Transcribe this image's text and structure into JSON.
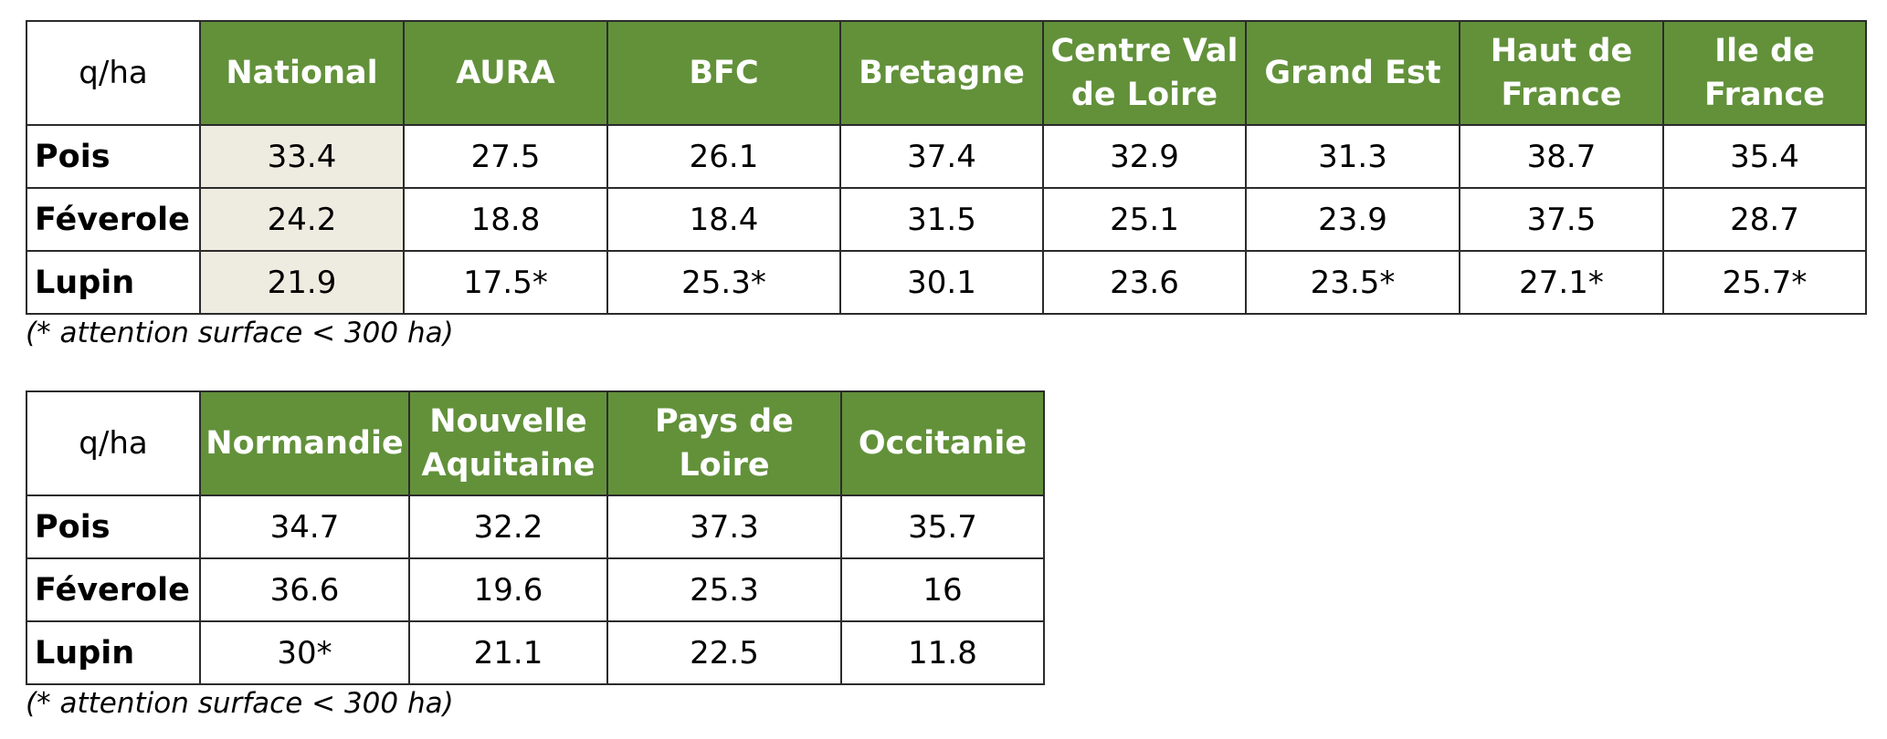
{
  "table1": {
    "unit_label": "q/ha",
    "columns": [
      "National",
      "AURA",
      "BFC",
      "Bretagne",
      "Centre Val de Loire",
      "Grand Est",
      "Haut de France",
      "Ile de France"
    ],
    "rows": [
      {
        "crop": "Pois",
        "values": [
          "33.4",
          "27.5",
          "26.1",
          "37.4",
          "32.9",
          "31.3",
          "38.7",
          "35.4"
        ]
      },
      {
        "crop": "Féverole",
        "values": [
          "24.2",
          "18.8",
          "18.4",
          "31.5",
          "25.1",
          "23.9",
          "37.5",
          "28.7"
        ]
      },
      {
        "crop": "Lupin",
        "values": [
          "21.9",
          "17.5*",
          "25.3*",
          "30.1",
          "23.6",
          "23.5*",
          "27.1*",
          "25.7*"
        ]
      }
    ],
    "note": "(* attention surface < 300 ha)"
  },
  "table2": {
    "unit_label": "q/ha",
    "columns": [
      "Normandie",
      "Nouvelle Aquitaine",
      "Pays de Loire",
      "Occitanie"
    ],
    "rows": [
      {
        "crop": "Pois",
        "values": [
          "34.7",
          "32.2",
          "37.3",
          "35.7"
        ]
      },
      {
        "crop": "Féverole",
        "values": [
          "36.6",
          "19.6",
          "25.3",
          "16"
        ]
      },
      {
        "crop": "Lupin",
        "values": [
          "30*",
          "21.1",
          "22.5",
          "11.8"
        ]
      }
    ],
    "note": "(* attention surface < 300 ha)"
  },
  "colors": {
    "header_green": "#62913a",
    "national_shade": "#eeebe0",
    "border": "#2b2b2b"
  }
}
